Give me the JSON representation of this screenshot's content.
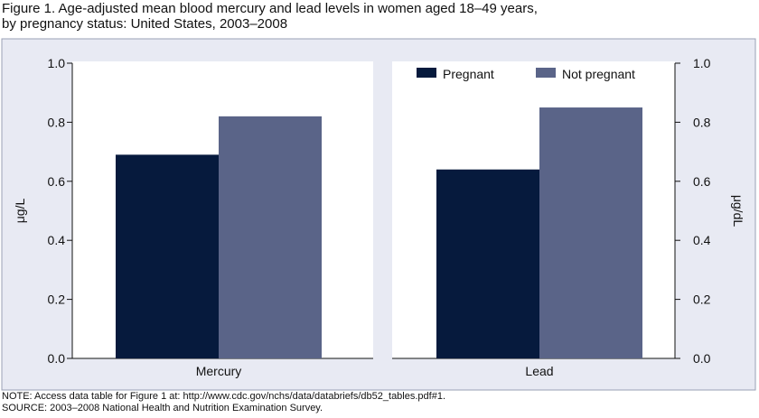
{
  "figure": {
    "title_line1": "Figure 1. Age-adjusted mean blood mercury and lead levels in women aged 18–49 years,",
    "title_line2": "by pregnancy status: United States, 2003–2008"
  },
  "notes": {
    "note": "NOTE: Access data table for Figure 1 at: http://www.cdc.gov/nchs/data/databriefs/db52_tables.pdf#1.",
    "source": "SOURCE: 2003–2008 National Health and Nutrition Examination Survey."
  },
  "colors": {
    "background_panel": "#e8eaf3",
    "plot_area": "#ffffff",
    "pregnant": "#061a3d",
    "not_pregnant": "#5a6488"
  },
  "chart_data": {
    "type": "bar",
    "categories": [
      "Mercury",
      "Lead"
    ],
    "series": [
      {
        "name": "Pregnant",
        "values": [
          0.69,
          0.64
        ]
      },
      {
        "name": "Not pregnant",
        "values": [
          0.82,
          0.85
        ]
      }
    ],
    "ylabel_left": "μg/L",
    "ylabel_right": "μg/dL",
    "ylim": [
      0,
      1.0
    ],
    "yticks": [
      "0.0",
      "0.2",
      "0.4",
      "0.6",
      "0.8",
      "1.0"
    ],
    "legend_position": "top-right",
    "grid": false
  }
}
